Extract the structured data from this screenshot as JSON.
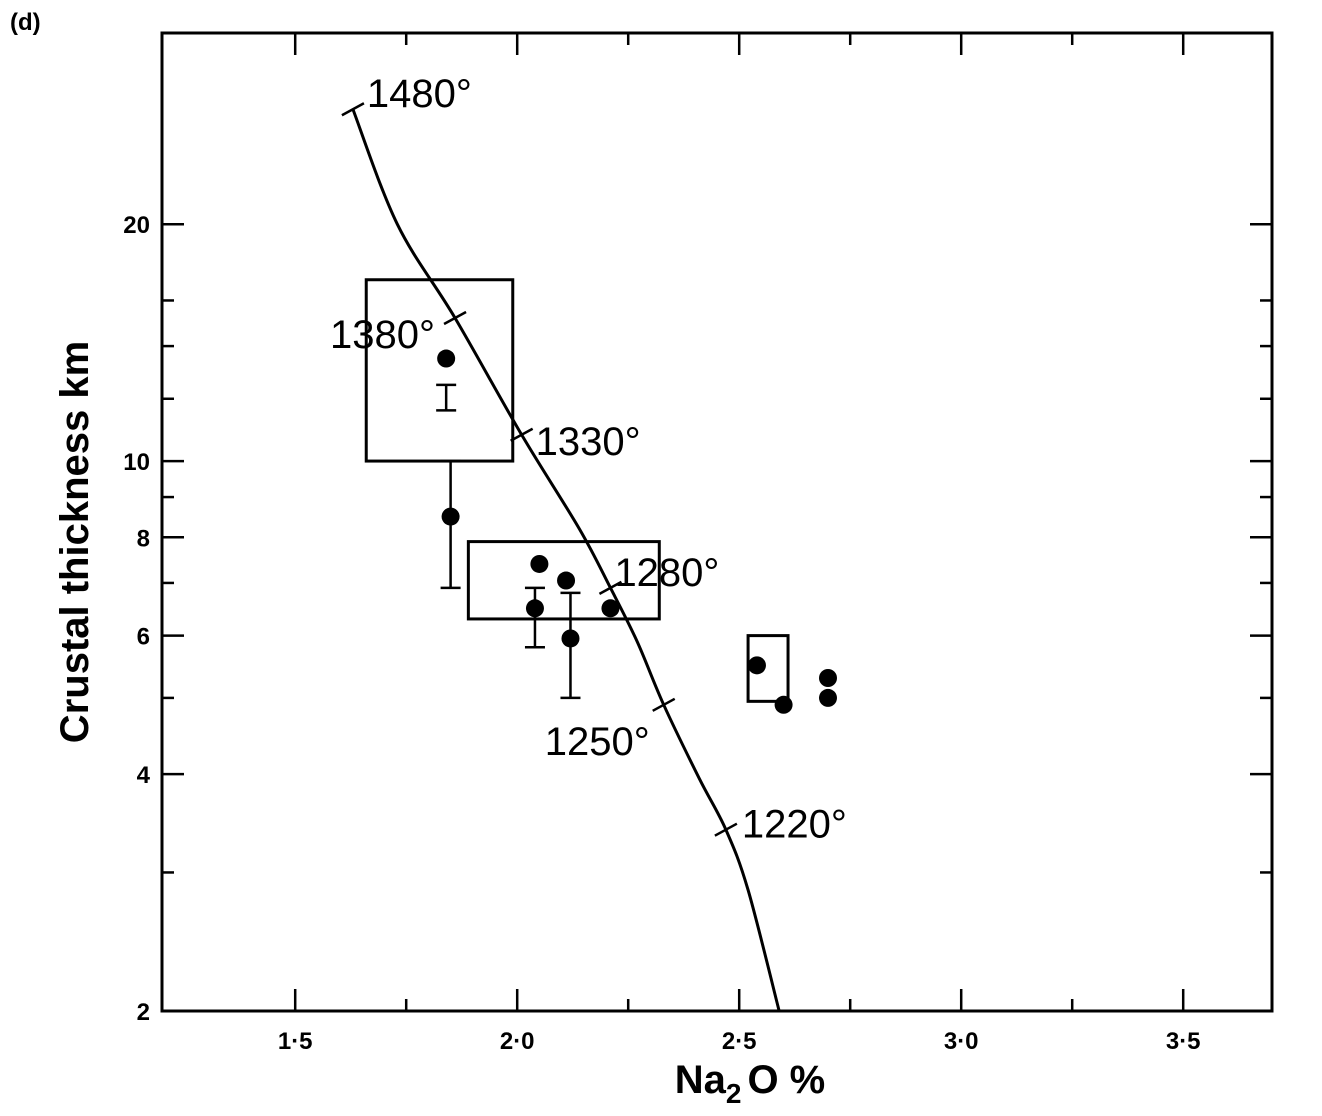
{
  "chart_data": {
    "type": "scatter",
    "panel_label": "(d)",
    "xlabel_main": "Na",
    "xlabel_sub": "2",
    "xlabel_rest": "O %",
    "ylabel": "Crustal thickness km",
    "xlim": [
      1.2,
      3.7
    ],
    "ylim": [
      2,
      35
    ],
    "y_scale": "log",
    "x_ticks": [
      {
        "value": 1.5,
        "label": "1·5"
      },
      {
        "value": 2.0,
        "label": "2·0"
      },
      {
        "value": 2.5,
        "label": "2·5"
      },
      {
        "value": 3.0,
        "label": "3·0"
      },
      {
        "value": 3.5,
        "label": "3·5"
      }
    ],
    "x_minor_ticks": [
      1.75,
      2.25,
      2.75,
      3.25
    ],
    "y_ticks": [
      {
        "value": 2,
        "label": "2"
      },
      {
        "value": 4,
        "label": "4"
      },
      {
        "value": 6,
        "label": "6"
      },
      {
        "value": 8,
        "label": "8"
      },
      {
        "value": 10,
        "label": "10"
      },
      {
        "value": 20,
        "label": "20"
      }
    ],
    "y_minor_ticks": [
      3,
      5,
      7,
      9,
      12,
      14,
      16
    ],
    "model_curve": [
      {
        "x": 1.63,
        "y": 28.0
      },
      {
        "x": 1.73,
        "y": 20.0
      },
      {
        "x": 1.86,
        "y": 15.2
      },
      {
        "x": 2.01,
        "y": 10.8
      },
      {
        "x": 2.14,
        "y": 8.2
      },
      {
        "x": 2.21,
        "y": 6.9
      },
      {
        "x": 2.27,
        "y": 5.9
      },
      {
        "x": 2.33,
        "y": 4.9
      },
      {
        "x": 2.41,
        "y": 3.95
      },
      {
        "x": 2.47,
        "y": 3.4
      },
      {
        "x": 2.52,
        "y": 2.85
      },
      {
        "x": 2.59,
        "y": 2.0
      }
    ],
    "temperature_marks": [
      {
        "label": "1480°",
        "x": 1.63,
        "y": 28.0
      },
      {
        "label": "1380°",
        "x": 1.86,
        "y": 15.2
      },
      {
        "label": "1330°",
        "x": 2.01,
        "y": 10.8
      },
      {
        "label": "1280°",
        "x": 2.21,
        "y": 6.9
      },
      {
        "label": "1250°",
        "x": 2.33,
        "y": 4.9
      },
      {
        "label": "1220°",
        "x": 2.47,
        "y": 3.4
      }
    ],
    "boxes": [
      {
        "x0": 1.66,
        "x1": 1.99,
        "y0": 10.0,
        "y1": 17.0
      },
      {
        "x0": 1.89,
        "x1": 2.32,
        "y0": 6.3,
        "y1": 7.9
      },
      {
        "x0": 2.52,
        "x1": 2.61,
        "y0": 4.95,
        "y1": 6.0
      }
    ],
    "points": [
      {
        "x": 1.84,
        "y": 13.5
      },
      {
        "x": 1.85,
        "y": 8.5
      },
      {
        "x": 2.05,
        "y": 7.4
      },
      {
        "x": 2.11,
        "y": 7.05
      },
      {
        "x": 2.04,
        "y": 6.5
      },
      {
        "x": 2.12,
        "y": 5.95
      },
      {
        "x": 2.21,
        "y": 6.5
      },
      {
        "x": 2.54,
        "y": 5.5
      },
      {
        "x": 2.6,
        "y": 4.9
      },
      {
        "x": 2.7,
        "y": 5.3
      },
      {
        "x": 2.7,
        "y": 5.0
      }
    ],
    "error_bars": [
      {
        "x": 1.84,
        "low": 11.6,
        "high": 12.5
      },
      {
        "x": 1.85,
        "low": 6.9,
        "high": 10.0
      },
      {
        "x": 2.04,
        "low": 5.8,
        "high": 6.9
      },
      {
        "x": 2.12,
        "low": 5.0,
        "high": 6.8
      }
    ]
  }
}
